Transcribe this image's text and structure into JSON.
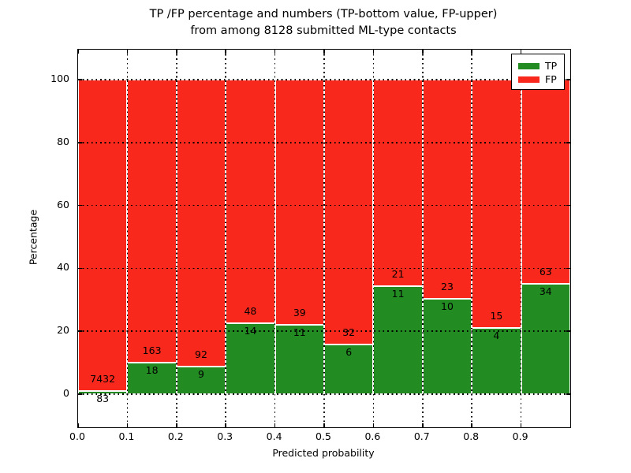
{
  "title_line1": "TP /FP percentage and numbers (TP-bottom value, FP-upper)",
  "title_line2": "from among 8128 submitted ML-type contacts",
  "chart_data": {
    "type": "bar",
    "stacked": true,
    "normalized": "each bin scaled to 100%",
    "title": "TP /FP percentage and numbers (TP-bottom value, FP-upper) from among 8128 submitted ML-type contacts",
    "xlabel": "Predicted probability",
    "ylabel": "Percentage",
    "total_contacts": 8128,
    "categories": [
      "0.0-0.1",
      "0.1-0.2",
      "0.2-0.3",
      "0.3-0.4",
      "0.4-0.5",
      "0.5-0.6",
      "0.6-0.7",
      "0.7-0.8",
      "0.8-0.9",
      "0.9-1.0"
    ],
    "series": [
      {
        "name": "TP",
        "color": "#228b22",
        "counts": [
          83,
          18,
          9,
          14,
          11,
          6,
          11,
          10,
          4,
          34
        ]
      },
      {
        "name": "FP",
        "color": "#f9281c",
        "counts": [
          7432,
          163,
          92,
          48,
          39,
          32,
          21,
          23,
          15,
          63
        ]
      }
    ],
    "bar_label_rule": "FP count printed above TP/FP boundary, TP count below it",
    "x_tick_labels": [
      "0.0",
      "0.1",
      "0.2",
      "0.3",
      "0.4",
      "0.5",
      "0.6",
      "0.7",
      "0.8",
      "0.9"
    ],
    "y_ticks": [
      0,
      20,
      40,
      60,
      80,
      100
    ],
    "xlim": [
      0.0,
      1.0
    ],
    "ylim": [
      -10.5,
      109.5
    ],
    "grid": {
      "style": "dotted",
      "axes": "both",
      "on_top_of_bars": true
    },
    "legend": {
      "position": "upper right",
      "entries": [
        "TP",
        "FP"
      ]
    }
  }
}
